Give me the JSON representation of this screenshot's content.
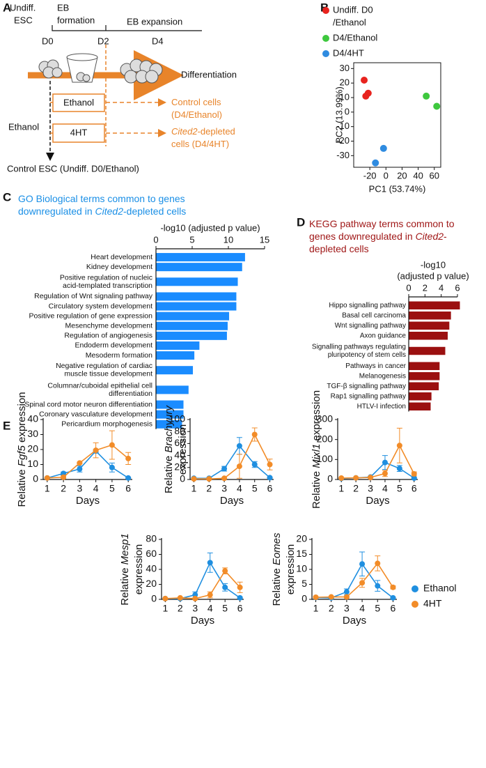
{
  "panel_labels": [
    "A",
    "B",
    "C",
    "D",
    "E"
  ],
  "diagram": {
    "undiff_esc": [
      "Undiff.",
      "ESC"
    ],
    "eb_formation": [
      "EB",
      "formation"
    ],
    "eb_expansion": "EB expansion",
    "days": [
      "D0",
      "D2",
      "D4"
    ],
    "differentiation": "Differentiation",
    "boxes": [
      "Ethanol",
      "4HT"
    ],
    "side_label": "Ethanol",
    "outcomes": [
      [
        [
          {
            "text": "Control cells"
          }
        ],
        [
          {
            "text": "(D4/Ethanol)"
          }
        ]
      ],
      [
        [
          {
            "text": "Cited2",
            "italic": true
          },
          {
            "text": "-depleted"
          }
        ],
        [
          {
            "text": "cells (D4/4HT)"
          }
        ]
      ]
    ],
    "bottom": "Control ESC (Undiff. D0/Ethanol)"
  },
  "chart_data": [
    {
      "type": "scatter",
      "xlabel": "PC1 (53.74%)",
      "ylabel": "PC2 (13.99%)",
      "xlim": [
        -40,
        68
      ],
      "ylim": [
        -38,
        34
      ],
      "xticks": [
        -20,
        0,
        20,
        40,
        60
      ],
      "yticks": [
        -30,
        -20,
        -10,
        0,
        10,
        20,
        30
      ],
      "series": [
        {
          "name": [
            "Undiff. D0",
            "/Ethanol"
          ],
          "color": "#e8231e",
          "x": [
            -27,
            -22,
            -25
          ],
          "values": [
            22,
            13,
            11
          ]
        },
        {
          "name": [
            "D4/Ethanol"
          ],
          "color": "#3ec83e",
          "x": [
            50,
            63
          ],
          "values": [
            11,
            4
          ]
        },
        {
          "name": [
            "D4/4HT"
          ],
          "color": "#2f8be0",
          "x": [
            -3,
            -13
          ],
          "values": [
            -25,
            -35
          ]
        }
      ]
    },
    {
      "type": "bar",
      "orientation": "horizontal",
      "color": "#1a8cff",
      "title": [
        [
          {
            "text": "GO Biological terms common to genes"
          }
        ],
        [
          {
            "text": "downregulated in "
          },
          {
            "text": "Cited2",
            "italic": true
          },
          {
            "text": "-depleted cells"
          }
        ]
      ],
      "xlabel": [
        "-log10 (adjusted p value)"
      ],
      "xlim": [
        0,
        15
      ],
      "xticks": [
        0,
        5,
        10,
        15
      ],
      "categories": [
        [
          "Heart development"
        ],
        [
          "Kidney development"
        ],
        [
          "Positive regulation of nucleic",
          "acid-templated transcription"
        ],
        [
          "Regulation of Wnt signaling pathway"
        ],
        [
          "Circulatory system development"
        ],
        [
          "Positive regulation of gene expression"
        ],
        [
          "Mesenchyme development"
        ],
        [
          "Regulation of angiogenesis"
        ],
        [
          "Endoderm development"
        ],
        [
          "Mesoderm formation"
        ],
        [
          "Negative regulation of cardiac",
          "muscle tissue development"
        ],
        [
          "Columnar/cuboidal epithelial cell",
          "differentiation"
        ],
        [
          "Spinal cord motor neuron differentiation"
        ],
        [
          "Coronary vasculature development"
        ],
        [
          "Pericardium morphogenesis"
        ]
      ],
      "values": [
        12.3,
        11.9,
        11.3,
        11.1,
        11.1,
        10.1,
        9.9,
        9.8,
        6.0,
        5.3,
        5.1,
        4.5,
        3.8,
        3.8,
        3.6
      ]
    },
    {
      "type": "bar",
      "orientation": "horizontal",
      "color": "#9b1010",
      "title": [
        [
          {
            "text": "KEGG pathway terms common to"
          }
        ],
        [
          {
            "text": "genes downregulated in "
          },
          {
            "text": "Cited2",
            "italic": true
          },
          {
            "text": "-"
          }
        ],
        [
          {
            "text": "depleted cells"
          }
        ]
      ],
      "xlabel": [
        "-log10",
        "(adjusted p value)"
      ],
      "xlim": [
        0,
        6
      ],
      "xticks": [
        0,
        2,
        4,
        6
      ],
      "categories": [
        [
          "Hippo signalling pathway"
        ],
        [
          "Basal cell carcinoma"
        ],
        [
          "Wnt signalling pathway"
        ],
        [
          "Axon guidance"
        ],
        [
          "Signalling pathways regulating",
          "pluripotency of stem cells"
        ],
        [
          "Pathways in cancer"
        ],
        [
          "Melanogenesis"
        ],
        [
          "TGF-β signalling pathway"
        ],
        [
          "Rap1 signalling pathway"
        ],
        [
          "HTLV-I infection"
        ]
      ],
      "values": [
        6.3,
        5.2,
        5.0,
        4.8,
        4.5,
        3.8,
        3.8,
        3.7,
        2.8,
        2.7
      ]
    },
    {
      "type": "line",
      "xlabel": "Days",
      "x": [
        1,
        2,
        3,
        4,
        5,
        6
      ],
      "xlim": [
        0.75,
        6.25
      ],
      "xticks": [
        1,
        2,
        3,
        4,
        5,
        6
      ],
      "ylim": [
        0,
        40
      ],
      "yticks": [
        0,
        10,
        20,
        30,
        40
      ],
      "ylabel": [
        [
          {
            "text": "Relative "
          },
          {
            "text": "Fgf5",
            "italic": true
          },
          {
            "text": " expression"
          }
        ]
      ],
      "series": [
        {
          "color": "#1f8fe0",
          "values": [
            1,
            4,
            7,
            19,
            8,
            1
          ],
          "errors": [
            0.3,
            1,
            2,
            1,
            3,
            0.3
          ]
        },
        {
          "color": "#f28c28",
          "values": [
            1,
            1.5,
            11,
            19.5,
            23,
            14
          ],
          "errors": [
            0.3,
            1,
            0.5,
            5,
            9.5,
            4
          ]
        }
      ]
    },
    {
      "type": "line",
      "xlabel": "Days",
      "x": [
        1,
        2,
        3,
        4,
        5,
        6
      ],
      "xlim": [
        0.75,
        6.25
      ],
      "xticks": [
        1,
        2,
        3,
        4,
        5,
        6
      ],
      "ylim": [
        0,
        100
      ],
      "yticks": [
        0,
        20,
        40,
        60,
        80,
        100
      ],
      "ylabel": [
        [
          {
            "text": "Relative "
          },
          {
            "text": "Brachyury",
            "italic": true
          }
        ],
        [
          {
            "text": "expression"
          }
        ]
      ],
      "series": [
        {
          "color": "#1f8fe0",
          "values": [
            2,
            2,
            18,
            56,
            25,
            3
          ],
          "errors": [
            0.5,
            0.5,
            4,
            14,
            5,
            1
          ]
        },
        {
          "color": "#f28c28",
          "values": [
            1,
            1,
            2,
            22,
            75,
            25
          ],
          "errors": [
            0.3,
            0.3,
            1,
            20,
            11,
            9
          ]
        }
      ]
    },
    {
      "type": "line",
      "xlabel": "Days",
      "x": [
        1,
        2,
        3,
        4,
        5,
        6
      ],
      "xlim": [
        0.75,
        6.25
      ],
      "xticks": [
        1,
        2,
        3,
        4,
        5,
        6
      ],
      "ylim": [
        0,
        300
      ],
      "yticks": [
        0,
        100,
        200,
        300
      ],
      "ylabel": [
        [
          {
            "text": "Relative "
          },
          {
            "text": "Mixl1",
            "italic": true
          },
          {
            "text": " expression"
          }
        ]
      ],
      "series": [
        {
          "color": "#1f8fe0",
          "values": [
            5,
            8,
            12,
            85,
            55,
            7
          ],
          "errors": [
            2,
            2,
            3,
            35,
            15,
            3
          ]
        },
        {
          "color": "#f28c28",
          "values": [
            7,
            8,
            10,
            30,
            170,
            28
          ],
          "errors": [
            2,
            2,
            2,
            15,
            87,
            10
          ]
        }
      ]
    },
    {
      "type": "line",
      "xlabel": "Days",
      "x": [
        1,
        2,
        3,
        4,
        5,
        6
      ],
      "xlim": [
        0.75,
        6.25
      ],
      "xticks": [
        1,
        2,
        3,
        4,
        5,
        6
      ],
      "ylim": [
        0,
        80
      ],
      "yticks": [
        0,
        20,
        40,
        60,
        80
      ],
      "ylabel": [
        [
          {
            "text": "Relative "
          },
          {
            "text": "Mesp1",
            "italic": true
          }
        ],
        [
          {
            "text": "expression"
          }
        ]
      ],
      "series": [
        {
          "color": "#1f8fe0",
          "values": [
            1,
            1,
            6,
            49,
            16,
            2
          ],
          "errors": [
            0.5,
            0.5,
            4,
            13,
            5,
            1
          ]
        },
        {
          "color": "#f28c28",
          "values": [
            1,
            2,
            1,
            6,
            38,
            16
          ],
          "errors": [
            0.5,
            0.5,
            0.3,
            4,
            4,
            7
          ]
        }
      ]
    },
    {
      "type": "line",
      "xlabel": "Days",
      "x": [
        1,
        2,
        3,
        4,
        5,
        6
      ],
      "xlim": [
        0.75,
        6.25
      ],
      "xticks": [
        1,
        2,
        3,
        4,
        5,
        6
      ],
      "ylim": [
        0,
        20
      ],
      "yticks": [
        0,
        5,
        10,
        15,
        20
      ],
      "ylabel": [
        [
          {
            "text": "Relative "
          },
          {
            "text": "Eomes",
            "italic": true
          }
        ],
        [
          {
            "text": "expression"
          }
        ]
      ],
      "series": [
        {
          "name": "Ethanol",
          "color": "#1f8fe0",
          "values": [
            0.6,
            0.5,
            2.5,
            11.8,
            4.5,
            0.5
          ],
          "errors": [
            0.2,
            0.2,
            1,
            4,
            1.8,
            0.2
          ]
        },
        {
          "name": "4HT",
          "color": "#f28c28",
          "values": [
            0.7,
            0.8,
            0.8,
            5.5,
            12,
            4
          ],
          "errors": [
            0.2,
            0.2,
            0.3,
            1.5,
            2.5,
            0.5
          ]
        }
      ]
    }
  ]
}
